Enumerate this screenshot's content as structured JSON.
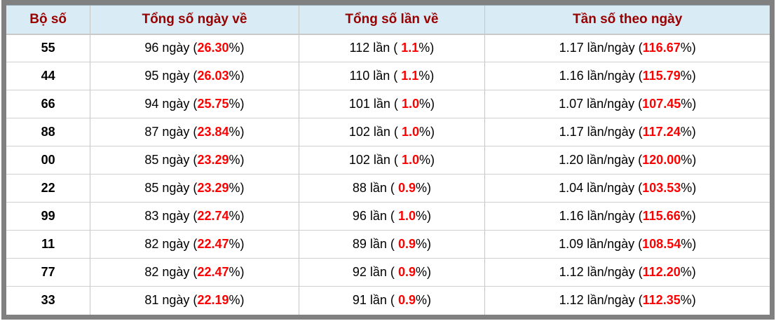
{
  "table": {
    "headers": [
      "Bộ số",
      "Tổng số ngày về",
      "Tổng số lần về",
      "Tần số theo ngày"
    ],
    "rows": [
      {
        "pair": "55",
        "days": [
          "96 ngày (",
          "26.30",
          "%)"
        ],
        "times": [
          "112 lần ( ",
          "1.1",
          "%)"
        ],
        "freq": [
          "1.17 lần/ngày (",
          "116.67",
          "%)"
        ]
      },
      {
        "pair": "44",
        "days": [
          "95 ngày (",
          "26.03",
          "%)"
        ],
        "times": [
          "110 lần ( ",
          "1.1",
          "%)"
        ],
        "freq": [
          "1.16 lần/ngày (",
          "115.79",
          "%)"
        ]
      },
      {
        "pair": "66",
        "days": [
          "94 ngày (",
          "25.75",
          "%)"
        ],
        "times": [
          "101 lần ( ",
          "1.0",
          "%)"
        ],
        "freq": [
          "1.07 lần/ngày (",
          "107.45",
          "%)"
        ]
      },
      {
        "pair": "88",
        "days": [
          "87 ngày (",
          "23.84",
          "%)"
        ],
        "times": [
          "102 lần ( ",
          "1.0",
          "%)"
        ],
        "freq": [
          "1.17 lần/ngày (",
          "117.24",
          "%)"
        ]
      },
      {
        "pair": "00",
        "days": [
          "85 ngày (",
          "23.29",
          "%)"
        ],
        "times": [
          "102 lần ( ",
          "1.0",
          "%)"
        ],
        "freq": [
          "1.20 lần/ngày (",
          "120.00",
          "%)"
        ]
      },
      {
        "pair": "22",
        "days": [
          "85 ngày (",
          "23.29",
          "%)"
        ],
        "times": [
          "88 lần ( ",
          "0.9",
          "%)"
        ],
        "freq": [
          "1.04 lần/ngày (",
          "103.53",
          "%)"
        ]
      },
      {
        "pair": "99",
        "days": [
          "83 ngày (",
          "22.74",
          "%)"
        ],
        "times": [
          "96 lần ( ",
          "1.0",
          "%)"
        ],
        "freq": [
          "1.16 lần/ngày (",
          "115.66",
          "%)"
        ]
      },
      {
        "pair": "11",
        "days": [
          "82 ngày (",
          "22.47",
          "%)"
        ],
        "times": [
          "89 lần ( ",
          "0.9",
          "%)"
        ],
        "freq": [
          "1.09 lần/ngày (",
          "108.54",
          "%)"
        ]
      },
      {
        "pair": "77",
        "days": [
          "82 ngày (",
          "22.47",
          "%)"
        ],
        "times": [
          "92 lần ( ",
          "0.9",
          "%)"
        ],
        "freq": [
          "1.12 lần/ngày (",
          "112.20",
          "%)"
        ]
      },
      {
        "pair": "33",
        "days": [
          "81 ngày (",
          "22.19",
          "%)"
        ],
        "times": [
          "91 lần ( ",
          "0.9",
          "%)"
        ],
        "freq": [
          "1.12 lần/ngày (",
          "112.35",
          "%)"
        ]
      }
    ]
  },
  "colors": {
    "header_text": "#990000",
    "header_bg": "#d9ecf6",
    "percent": "#ff0000",
    "frame": "#808080",
    "row_divider": "#d0d0d0",
    "col_divider": "#c5c5c5"
  }
}
